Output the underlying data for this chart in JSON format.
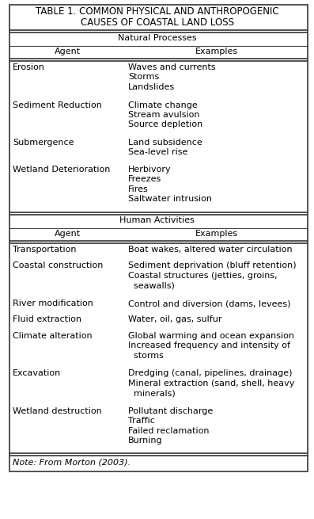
{
  "title_line1": "TABLE 1. COMMON PHYSICAL AND ANTHROPOGENIC",
  "title_line2": "CAUSES OF COASTAL LAND LOSS",
  "title_fontsize": 8.5,
  "body_fontsize": 8.0,
  "note_fontsize": 8.0,
  "bg_color": "#ffffff",
  "text_color": "#000000",
  "natural_section_header": "Natural Processes",
  "human_section_header": "Human Activities",
  "col1_header": "Agent",
  "col2_header": "Examples",
  "natural_rows": [
    {
      "agent": "Erosion",
      "examples": "Waves and currents\nStorms\nLandslides",
      "agent_lines": 1,
      "example_lines": 3
    },
    {
      "agent": "Sediment Reduction",
      "examples": "Climate change\nStream avulsion\nSource depletion",
      "agent_lines": 1,
      "example_lines": 3
    },
    {
      "agent": "Submergence",
      "examples": "Land subsidence\nSea-level rise",
      "agent_lines": 1,
      "example_lines": 2
    },
    {
      "agent": "Wetland Deterioration",
      "examples": "Herbivory\nFreezes\nFires\nSaltwater intrusion",
      "agent_lines": 1,
      "example_lines": 4
    }
  ],
  "human_rows": [
    {
      "agent": "Transportation",
      "examples": "Boat wakes, altered water circulation",
      "agent_lines": 1,
      "example_lines": 1
    },
    {
      "agent": "Coastal construction",
      "examples": "Sediment deprivation (bluff retention)\nCoastal structures (jetties, groins,\n  seawalls)",
      "agent_lines": 1,
      "example_lines": 3
    },
    {
      "agent": "River modification",
      "examples": "Control and diversion (dams, levees)",
      "agent_lines": 1,
      "example_lines": 1
    },
    {
      "agent": "Fluid extraction",
      "examples": "Water, oil, gas, sulfur",
      "agent_lines": 1,
      "example_lines": 1
    },
    {
      "agent": "Climate alteration",
      "examples": "Global warming and ocean expansion\nIncreased frequency and intensity of\n  storms",
      "agent_lines": 1,
      "example_lines": 3
    },
    {
      "agent": "Excavation",
      "examples": "Dredging (canal, pipelines, drainage)\nMineral extraction (sand, shell, heavy\n  minerals)",
      "agent_lines": 1,
      "example_lines": 3
    },
    {
      "agent": "Wetland destruction",
      "examples": "Pollutant discharge\nTraffic\nFailed reclamation\nBurning",
      "agent_lines": 1,
      "example_lines": 4
    }
  ],
  "note": "Note: From Morton (2003)."
}
